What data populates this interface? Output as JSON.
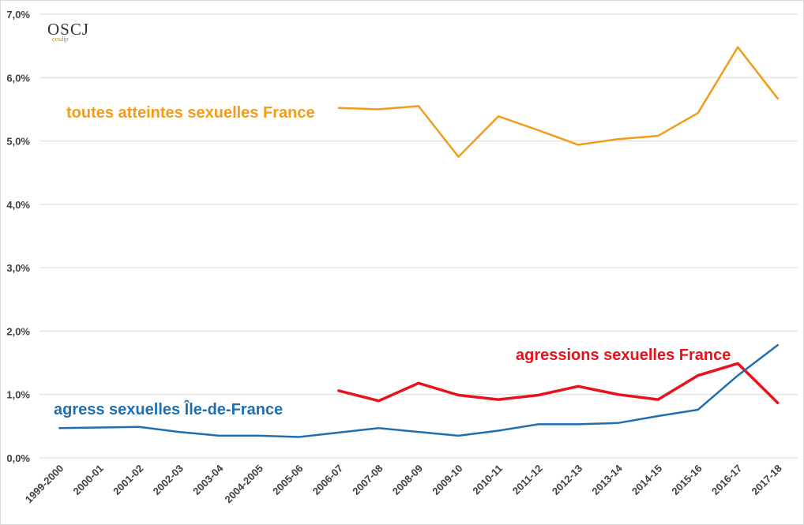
{
  "logo": {
    "text": "OSCJ",
    "subtext": "cesdip"
  },
  "chart_data": {
    "type": "line",
    "categories": [
      "1999-2000",
      "2000-01",
      "2001-02",
      "2002-03",
      "2003-04",
      "2004-2005",
      "2005-06",
      "2006-07",
      "2007-08",
      "2008-09",
      "2009-10",
      "2010-11",
      "2011-12",
      "2012-13",
      "2013-14",
      "2014-15",
      "2015-16",
      "2016-17",
      "2017-18"
    ],
    "ylim": [
      0,
      7
    ],
    "yticks": [
      "0,0%",
      "1,0%",
      "2,0%",
      "3,0%",
      "4,0%",
      "5,0%",
      "6,0%",
      "7,0%"
    ],
    "grid": true,
    "legend": "none",
    "series": [
      {
        "name": "toutes atteintes sexuelles  France",
        "color": "#f39c1a",
        "values": [
          null,
          null,
          null,
          null,
          null,
          null,
          null,
          5.52,
          5.5,
          5.55,
          4.75,
          5.39,
          5.17,
          4.94,
          5.03,
          5.08,
          5.44,
          6.48,
          5.67
        ]
      },
      {
        "name": "agressions sexuelles France",
        "color": "#e8121a",
        "values": [
          null,
          null,
          null,
          null,
          null,
          null,
          null,
          1.06,
          0.9,
          1.18,
          0.99,
          0.92,
          0.99,
          1.13,
          1.0,
          0.92,
          1.3,
          1.49,
          0.87
        ]
      },
      {
        "name": "agress sexuelles Île-de-France",
        "color": "#1f6fb0",
        "values": [
          0.47,
          0.48,
          0.49,
          0.41,
          0.35,
          0.35,
          0.33,
          0.4,
          0.47,
          0.41,
          0.35,
          0.43,
          0.53,
          0.53,
          0.55,
          0.66,
          0.76,
          1.3,
          1.78
        ]
      }
    ]
  }
}
